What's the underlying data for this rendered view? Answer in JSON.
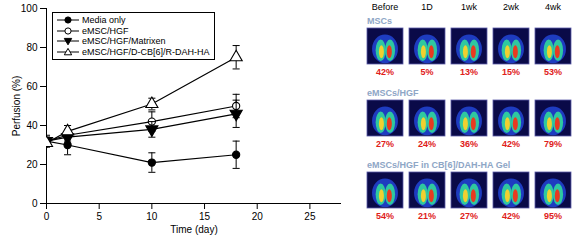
{
  "chart_data": [
    {
      "type": "line",
      "x_label": "Time (day)",
      "y_label": "Perfusion (%)",
      "xlim": [
        0,
        28
      ],
      "xticks": [
        0,
        5,
        10,
        15,
        20,
        25
      ],
      "ylim": [
        0,
        100
      ],
      "yticks": [
        0,
        20,
        40,
        60,
        80,
        100
      ],
      "grid": false,
      "legend": "top-left",
      "x": [
        0,
        2,
        10,
        18
      ],
      "series": [
        {
          "name": "Media only",
          "color": "#000000",
          "marker": "circle",
          "line_style": "solid",
          "values": [
            32,
            30,
            21,
            25
          ],
          "errors": [
            3,
            5,
            5,
            7
          ]
        },
        {
          "name": "eMSC/HGF",
          "color": "#000000",
          "marker": "open-circle",
          "line_style": "solid",
          "values": [
            32,
            35,
            42,
            50
          ],
          "errors": [
            2,
            3,
            5,
            6
          ]
        },
        {
          "name": "eMSC/HGF/Matrixen",
          "color": "#000000",
          "marker": "triangle-down",
          "line_style": "solid",
          "values": [
            32,
            34,
            38,
            46
          ],
          "errors": [
            2,
            3,
            4,
            7
          ]
        },
        {
          "name": "eMSC/HGF/D-CB[6]/R-DAH-HA",
          "color": "#000000",
          "marker": "open-triangle",
          "line_style": "solid",
          "values": [
            31,
            37,
            51,
            75
          ],
          "errors": [
            2,
            3,
            3,
            6
          ]
        }
      ]
    },
    {
      "type": "image_grid",
      "data_labels": true,
      "columns": [
        "Before",
        "1D",
        "1wk",
        "2wk",
        "4wk"
      ],
      "rows": [
        {
          "name": "MSCs",
          "values": [
            42,
            5,
            13,
            15,
            53
          ],
          "value_labels": [
            "42%",
            "5%",
            "13%",
            "15%",
            "53%"
          ]
        },
        {
          "name": "eMSCs/HGF",
          "values": [
            27,
            24,
            36,
            42,
            79
          ],
          "value_labels": [
            "27%",
            "24%",
            "36%",
            "42%",
            "79%"
          ]
        },
        {
          "name": "eMSCs/HGF in CB[6]/DAH-HA Gel",
          "values": [
            54,
            21,
            27,
            42,
            95
          ],
          "value_labels": [
            "54%",
            "21%",
            "27%",
            "42%",
            "95%"
          ]
        }
      ]
    }
  ]
}
